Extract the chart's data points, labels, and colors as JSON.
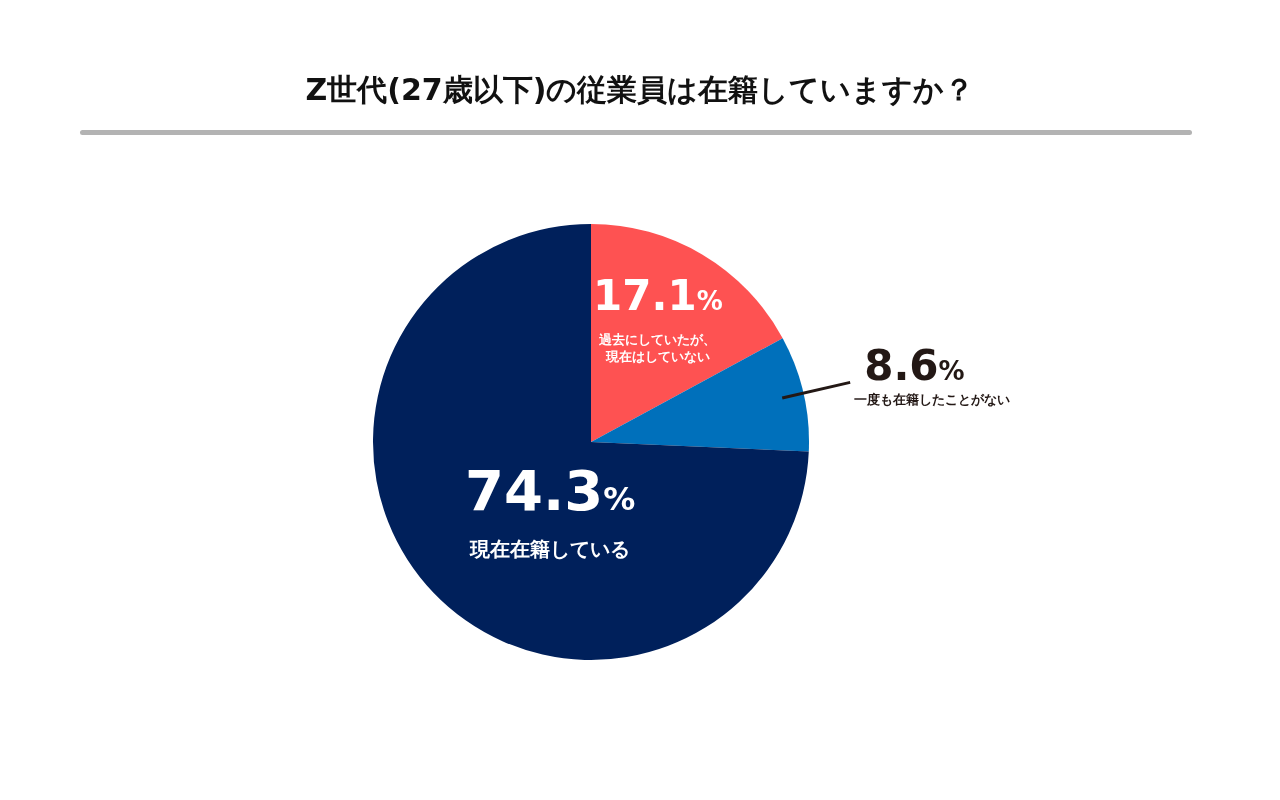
{
  "chart_data": {
    "type": "pie",
    "title": "Z世代(27歳以下)の従業員は在籍していますか？",
    "categories": [
      "過去にしていたが、現在はしていない",
      "一度も在籍したことがない",
      "現在在籍している"
    ],
    "values": [
      17.1,
      8.6,
      74.3
    ],
    "colors": [
      "#fe5252",
      "#0070bb",
      "#00205b"
    ],
    "value_labels": [
      "17.1%",
      "8.6%",
      "74.3%"
    ],
    "legend": false
  }
}
